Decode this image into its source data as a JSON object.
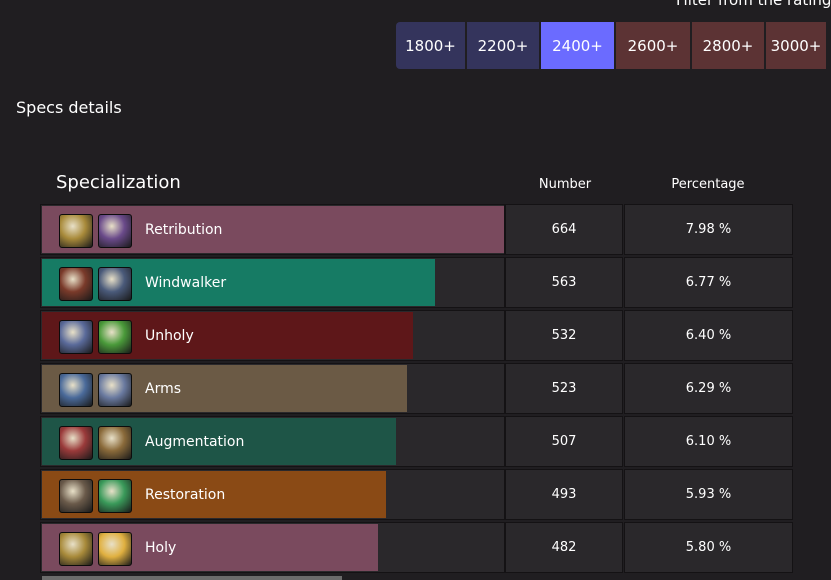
{
  "filter": {
    "title": "Filter from the rating",
    "options": [
      {
        "label": "1800+",
        "color": "#34345c"
      },
      {
        "label": "2200+",
        "color": "#34345c"
      },
      {
        "label": "2400+",
        "color": "#6b6bff",
        "selected": true
      },
      {
        "label": "2600+",
        "color": "#5c3334"
      },
      {
        "label": "2800+",
        "color": "#5c3334"
      },
      {
        "label": "3000+",
        "color": "#5c3334"
      }
    ]
  },
  "section_title": "Specs details",
  "table": {
    "headers": {
      "specialization": "Specialization",
      "number": "Number",
      "percentage": "Percentage"
    },
    "rows": [
      {
        "name": "Retribution",
        "number": "664",
        "percentage": "7.98 %",
        "color": "#7a4a5e",
        "icons": [
          "paladin-class-icon",
          "retribution-spec-icon"
        ],
        "icon_colors": [
          "#a88a3a",
          "#6a4a8a"
        ],
        "fill": 1.0
      },
      {
        "name": "Windwalker",
        "number": "563",
        "percentage": "6.77 %",
        "color": "#167b64",
        "icons": [
          "monk-class-icon",
          "windwalker-spec-icon"
        ],
        "icon_colors": [
          "#7a3a2a",
          "#4a5a7a"
        ],
        "fill": 0.848
      },
      {
        "name": "Unholy",
        "number": "532",
        "percentage": "6.40 %",
        "color": "#5e1719",
        "icons": [
          "death-knight-class-icon",
          "unholy-spec-icon"
        ],
        "icon_colors": [
          "#5a6a9a",
          "#4a9a3a"
        ],
        "fill": 0.801
      },
      {
        "name": "Arms",
        "number": "523",
        "percentage": "6.29 %",
        "color": "#6b5a45",
        "icons": [
          "warrior-class-icon",
          "arms-spec-icon"
        ],
        "icon_colors": [
          "#4a6a9a",
          "#6a7aa0"
        ],
        "fill": 0.788
      },
      {
        "name": "Augmentation",
        "number": "507",
        "percentage": "6.10 %",
        "color": "#1e5547",
        "icons": [
          "evoker-class-icon",
          "augmentation-spec-icon"
        ],
        "icon_colors": [
          "#9a3a3a",
          "#8a6a3a"
        ],
        "fill": 0.764
      },
      {
        "name": "Restoration",
        "number": "493",
        "percentage": "5.93 %",
        "color": "#8a4a15",
        "icons": [
          "druid-class-icon",
          "restoration-spec-icon"
        ],
        "icon_colors": [
          "#6a5a4a",
          "#3a9a5a"
        ],
        "fill": 0.742
      },
      {
        "name": "Holy",
        "number": "482",
        "percentage": "5.80 %",
        "color": "#7a4a5e",
        "icons": [
          "paladin-class-icon",
          "holy-spec-icon"
        ],
        "icon_colors": [
          "#a88a3a",
          "#e0b040"
        ],
        "fill": 0.726
      }
    ]
  }
}
